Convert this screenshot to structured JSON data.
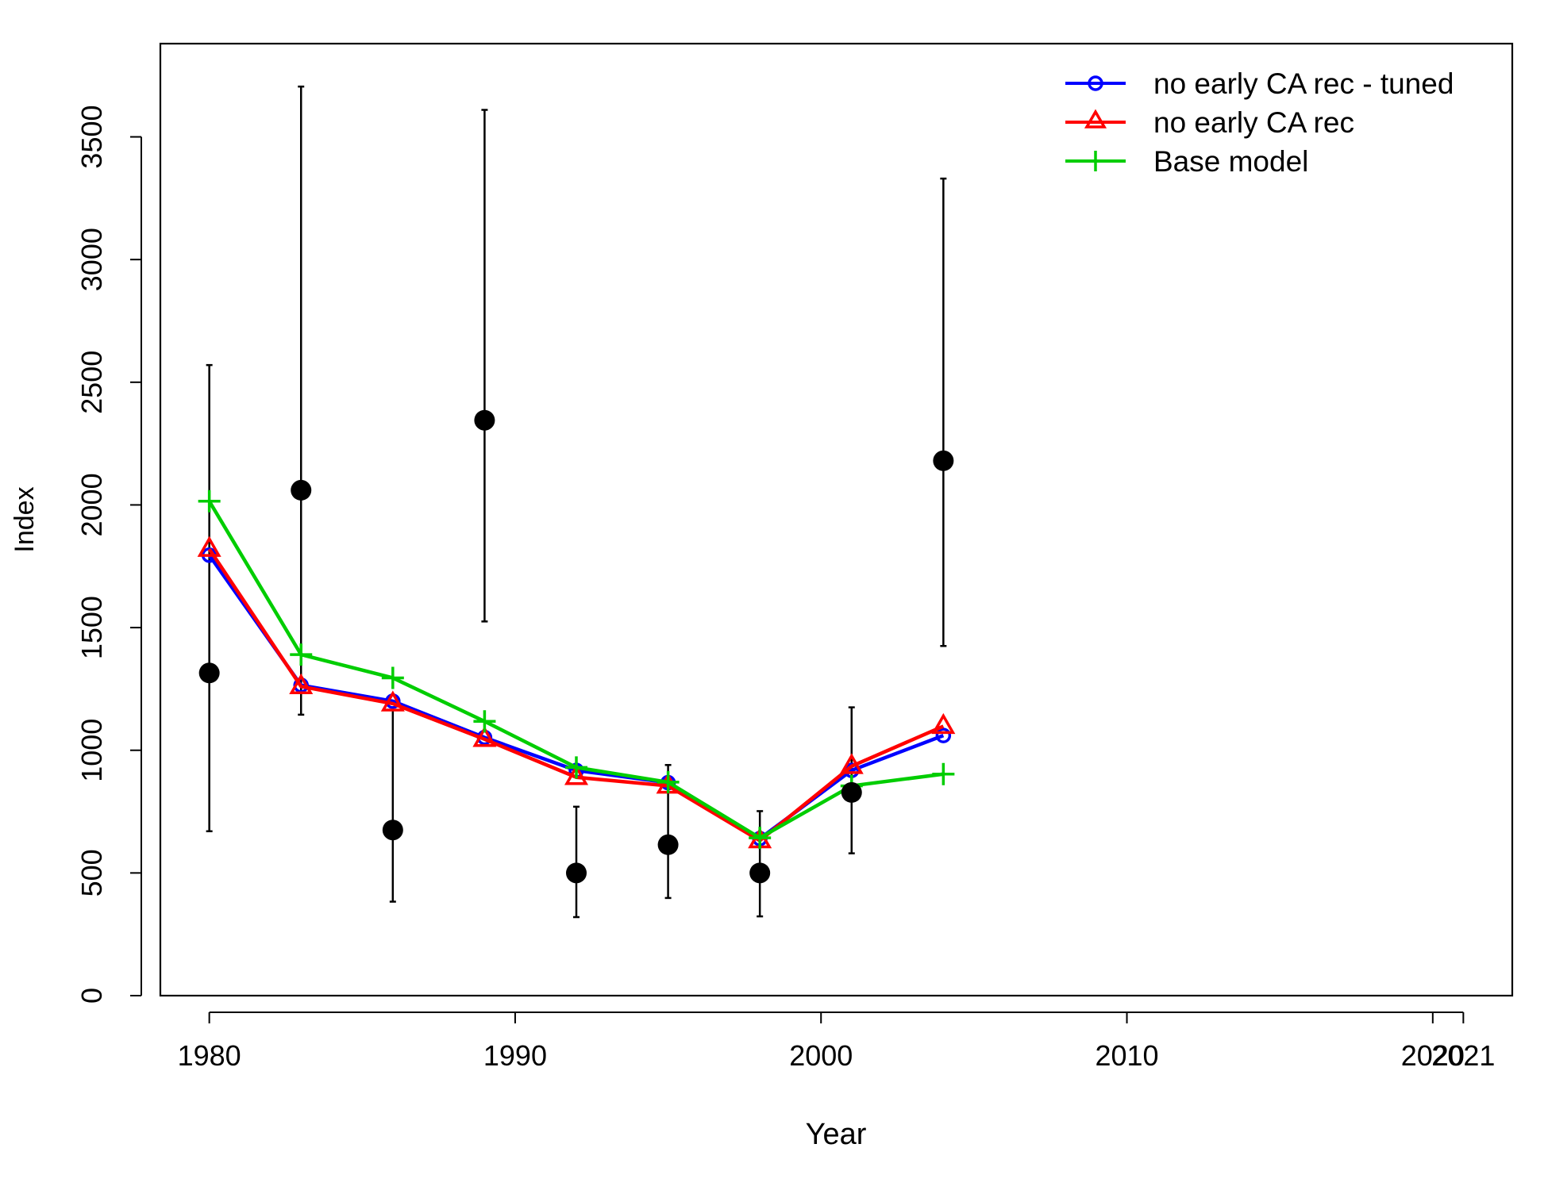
{
  "chart_data": {
    "type": "line",
    "title": "",
    "xlabel": "Year",
    "ylabel": "Index",
    "xlim": [
      1978.4,
      2022.6
    ],
    "ylim": [
      0,
      3880
    ],
    "x_ticks": [
      1980,
      1990,
      2000,
      2010,
      2020,
      2021
    ],
    "x_tick_labels": [
      "1980",
      "1990",
      "2000",
      "2010",
      "2020",
      "2021"
    ],
    "y_ticks": [
      0,
      500,
      1000,
      1500,
      2000,
      2500,
      3000,
      3500
    ],
    "y_tick_labels": [
      "0",
      "500",
      "1000",
      "1500",
      "2000",
      "2500",
      "3000",
      "3500"
    ],
    "grid": false,
    "legend_position": "top-right",
    "observed": {
      "x": [
        1980,
        1983,
        1986,
        1989,
        1992,
        1995,
        1998,
        2001,
        2004
      ],
      "y": [
        1315,
        2060,
        675,
        2345,
        500,
        615,
        500,
        828,
        2180
      ],
      "lower": [
        670,
        1145,
        383,
        1525,
        320,
        398,
        323,
        580,
        1425
      ],
      "upper": [
        2570,
        3705,
        1175,
        3610,
        770,
        940,
        752,
        1175,
        3330
      ],
      "color": "#000000"
    },
    "series": [
      {
        "name": "no early CA rec - tuned",
        "color": "#0000ff",
        "marker": "circle",
        "x": [
          1980,
          1983,
          1986,
          1989,
          1992,
          1995,
          1998,
          2001,
          2004
        ],
        "y": [
          1795,
          1265,
          1200,
          1052,
          918,
          868,
          640,
          918,
          1060
        ]
      },
      {
        "name": "no early CA rec",
        "color": "#ff0000",
        "marker": "triangle",
        "x": [
          1980,
          1983,
          1986,
          1989,
          1992,
          1995,
          1998,
          2001,
          2004
        ],
        "y": [
          1820,
          1260,
          1190,
          1045,
          890,
          855,
          632,
          935,
          1098
        ]
      },
      {
        "name": "Base model",
        "color": "#00cd00",
        "marker": "plus",
        "x": [
          1980,
          1983,
          1986,
          1989,
          1992,
          1995,
          1998,
          2001,
          2004
        ],
        "y": [
          2015,
          1390,
          1295,
          1118,
          930,
          870,
          643,
          855,
          903
        ]
      }
    ]
  }
}
